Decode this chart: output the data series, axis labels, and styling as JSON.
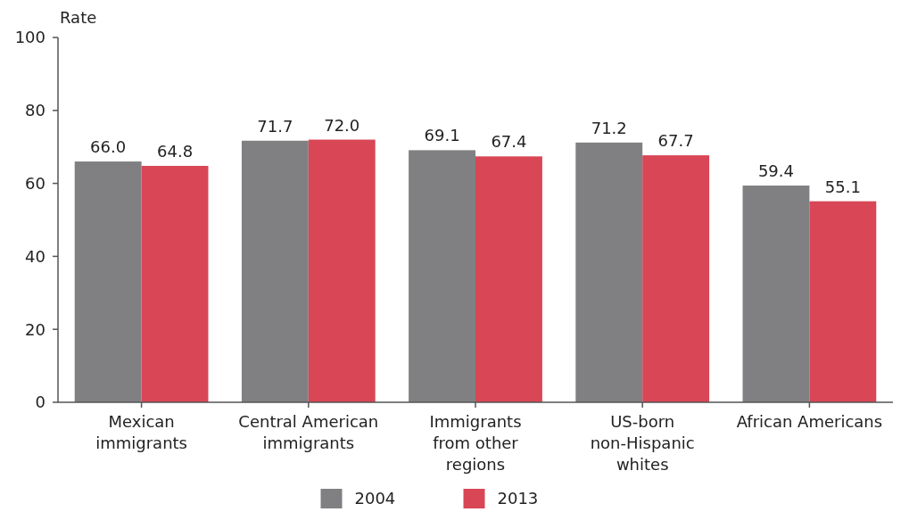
{
  "chart_data": {
    "type": "bar",
    "ylabel": "Rate",
    "categories": [
      "Mexican\nimmigrants",
      "Central American\nimmigrants",
      "Immigrants\nfrom other\nregions",
      "US-born\nnon-Hispanic\nwhites",
      "African Americans"
    ],
    "series": [
      {
        "name": "2004",
        "color": "#808083",
        "values": [
          66.0,
          71.7,
          69.1,
          71.2,
          59.4
        ],
        "value_labels": [
          "66.0",
          "71.7",
          "69.1",
          "71.2",
          "59.4"
        ]
      },
      {
        "name": "2013",
        "color": "#d94655",
        "values": [
          64.8,
          72.0,
          67.4,
          67.7,
          55.1
        ],
        "value_labels": [
          "64.8",
          "72.0",
          "67.4",
          "67.7",
          "55.1"
        ]
      }
    ],
    "ylim": [
      0,
      100
    ],
    "yticks": [
      0,
      20,
      40,
      60,
      80,
      100
    ],
    "legend": "bottom",
    "grid": false
  }
}
